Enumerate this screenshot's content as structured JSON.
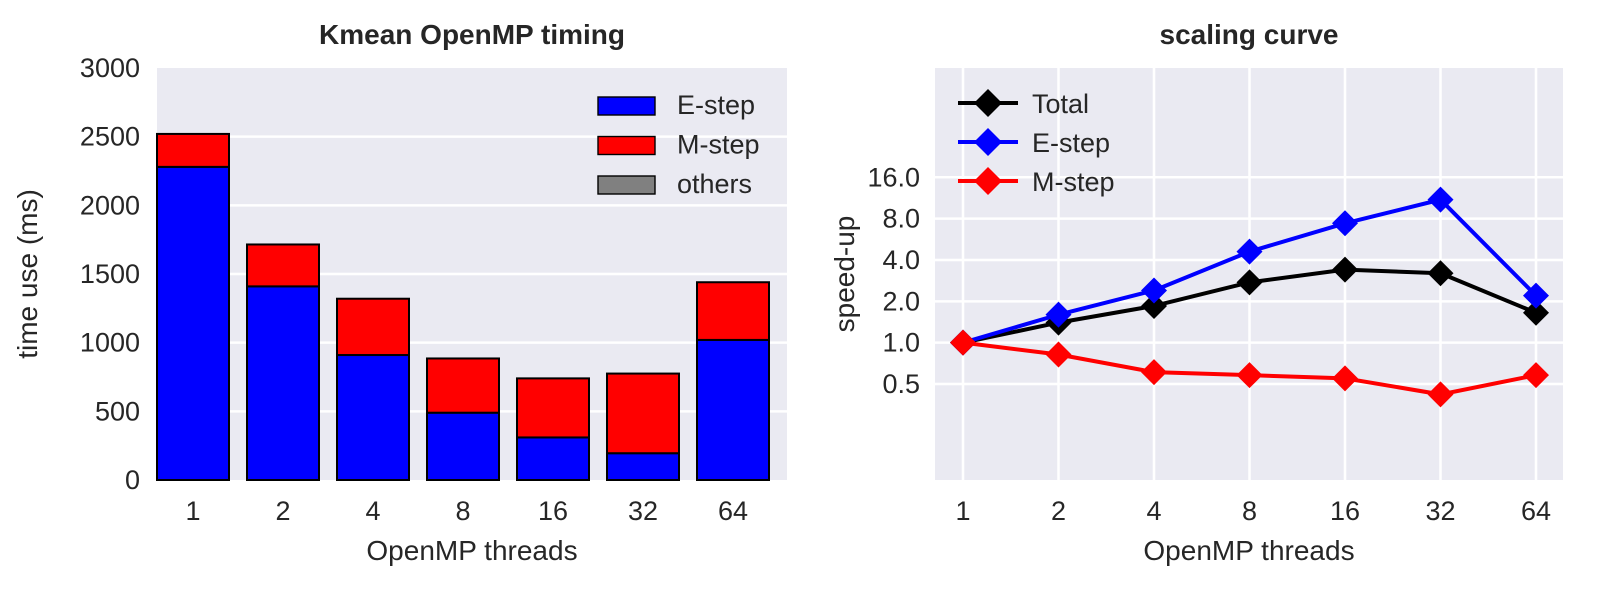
{
  "style": {
    "background": "#ffffff",
    "plot_background": "#eaeaf2",
    "grid_color": "#ffffff",
    "text_color": "#262626",
    "bar_edge_color": "#000000"
  },
  "chart_data": [
    {
      "type": "bar",
      "stacked": true,
      "title": "Kmean OpenMP timing",
      "xlabel": "OpenMP threads",
      "ylabel": "time use (ms)",
      "categories": [
        "1",
        "2",
        "4",
        "8",
        "16",
        "32",
        "64"
      ],
      "series": [
        {
          "name": "E-step",
          "color": "#0000ff",
          "values": [
            2280,
            1410,
            910,
            490,
            310,
            195,
            1020
          ]
        },
        {
          "name": "M-step",
          "color": "#ff0000",
          "values": [
            240,
            305,
            410,
            395,
            430,
            580,
            420
          ]
        },
        {
          "name": "others",
          "color": "#808080",
          "values": [
            0,
            0,
            0,
            0,
            0,
            0,
            0
          ]
        }
      ],
      "ylim": [
        0,
        3000
      ],
      "yticks": [
        0,
        500,
        1000,
        1500,
        2000,
        2500,
        3000
      ],
      "ytick_labels": [
        "0",
        "500",
        "1000",
        "1500",
        "2000",
        "2500",
        "3000"
      ],
      "grid": true,
      "legend_position": "upper right"
    },
    {
      "type": "line",
      "title": "scaling curve",
      "xlabel": "OpenMP threads",
      "ylabel": "speed-up",
      "x": [
        1,
        2,
        4,
        8,
        16,
        32,
        64
      ],
      "x_tick_labels": [
        "1",
        "2",
        "4",
        "8",
        "16",
        "32",
        "64"
      ],
      "yscale": "log",
      "ylim": [
        0.1,
        100
      ],
      "yticks": [
        16,
        8,
        4,
        2,
        1,
        0.5
      ],
      "ytick_labels": [
        "16.0",
        "8.0",
        "4.0",
        "2.0",
        "1.0",
        "0.5"
      ],
      "series": [
        {
          "name": "Total",
          "color": "#000000",
          "marker": "diamond",
          "values": [
            1.0,
            1.4,
            1.85,
            2.75,
            3.4,
            3.2,
            1.65
          ]
        },
        {
          "name": "E-step",
          "color": "#0000ff",
          "marker": "diamond",
          "values": [
            1.0,
            1.6,
            2.4,
            4.6,
            7.4,
            11.0,
            2.2
          ]
        },
        {
          "name": "M-step",
          "color": "#ff0000",
          "marker": "diamond",
          "values": [
            1.0,
            0.82,
            0.61,
            0.58,
            0.55,
            0.42,
            0.58
          ]
        }
      ],
      "grid": true,
      "legend_position": "upper left"
    }
  ]
}
